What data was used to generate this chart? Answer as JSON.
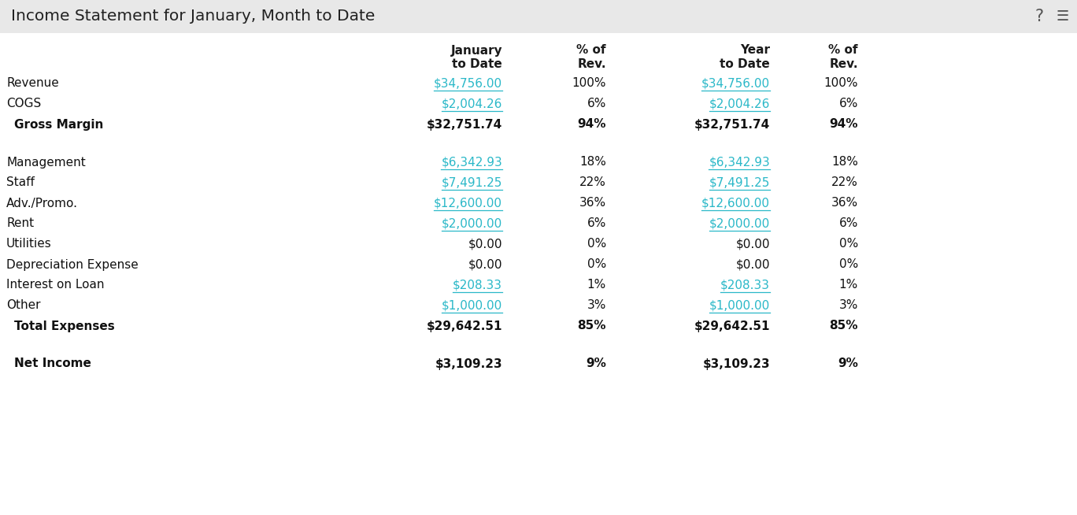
{
  "title": "Income Statement for January, Month to Date",
  "link_color": "#2ab8c8",
  "normal_color": "#111111",
  "rows": [
    {
      "label": "Revenue",
      "bold": false,
      "jan_val": "$34,756.00",
      "jan_pct": "100%",
      "yr_val": "$34,756.00",
      "yr_pct": "100%",
      "jan_link": true,
      "yr_link": true
    },
    {
      "label": "COGS",
      "bold": false,
      "jan_val": "$2,004.26",
      "jan_pct": "6%",
      "yr_val": "$2,004.26",
      "yr_pct": "6%",
      "jan_link": true,
      "yr_link": true
    },
    {
      "label": "Gross Margin",
      "bold": true,
      "jan_val": "$32,751.74",
      "jan_pct": "94%",
      "yr_val": "$32,751.74",
      "yr_pct": "94%",
      "jan_link": false,
      "yr_link": false
    },
    {
      "label": "",
      "bold": false,
      "jan_val": "",
      "jan_pct": "",
      "yr_val": "",
      "yr_pct": "",
      "jan_link": false,
      "yr_link": false
    },
    {
      "label": "Management",
      "bold": false,
      "jan_val": "$6,342.93",
      "jan_pct": "18%",
      "yr_val": "$6,342.93",
      "yr_pct": "18%",
      "jan_link": true,
      "yr_link": true
    },
    {
      "label": "Staff",
      "bold": false,
      "jan_val": "$7,491.25",
      "jan_pct": "22%",
      "yr_val": "$7,491.25",
      "yr_pct": "22%",
      "jan_link": true,
      "yr_link": true
    },
    {
      "label": "Adv./Promo.",
      "bold": false,
      "jan_val": "$12,600.00",
      "jan_pct": "36%",
      "yr_val": "$12,600.00",
      "yr_pct": "36%",
      "jan_link": true,
      "yr_link": true
    },
    {
      "label": "Rent",
      "bold": false,
      "jan_val": "$2,000.00",
      "jan_pct": "6%",
      "yr_val": "$2,000.00",
      "yr_pct": "6%",
      "jan_link": true,
      "yr_link": true
    },
    {
      "label": "Utilities",
      "bold": false,
      "jan_val": "$0.00",
      "jan_pct": "0%",
      "yr_val": "$0.00",
      "yr_pct": "0%",
      "jan_link": false,
      "yr_link": false
    },
    {
      "label": "Depreciation Expense",
      "bold": false,
      "jan_val": "$0.00",
      "jan_pct": "0%",
      "yr_val": "$0.00",
      "yr_pct": "0%",
      "jan_link": false,
      "yr_link": false
    },
    {
      "label": "Interest on Loan",
      "bold": false,
      "jan_val": "$208.33",
      "jan_pct": "1%",
      "yr_val": "$208.33",
      "yr_pct": "1%",
      "jan_link": true,
      "yr_link": true
    },
    {
      "label": "Other",
      "bold": false,
      "jan_val": "$1,000.00",
      "jan_pct": "3%",
      "yr_val": "$1,000.00",
      "yr_pct": "3%",
      "jan_link": true,
      "yr_link": true
    },
    {
      "label": "Total Expenses",
      "bold": true,
      "jan_val": "$29,642.51",
      "jan_pct": "85%",
      "yr_val": "$29,642.51",
      "yr_pct": "85%",
      "jan_link": false,
      "yr_link": false
    },
    {
      "label": "",
      "bold": false,
      "jan_val": "",
      "jan_pct": "",
      "yr_val": "",
      "yr_pct": "",
      "jan_link": false,
      "yr_link": false
    },
    {
      "label": "Net Income",
      "bold": true,
      "jan_val": "$3,109.23",
      "jan_pct": "9%",
      "yr_val": "$3,109.23",
      "yr_pct": "9%",
      "jan_link": false,
      "yr_link": false
    }
  ],
  "title_bar_color": "#e8e8e8",
  "title_fontsize": 14.5,
  "header_fontsize": 11,
  "row_fontsize": 11,
  "icon_fontsize": 15
}
